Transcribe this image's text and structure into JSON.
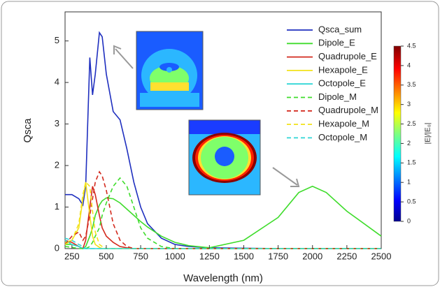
{
  "chart_data": {
    "type": "line",
    "x_label": "Wavelength (nm)",
    "y_label": "Qsca",
    "xlim": [
      200,
      2500
    ],
    "xticks": [
      250,
      500,
      750,
      1000,
      1250,
      1500,
      1750,
      2000,
      2250,
      2500
    ],
    "ylim": [
      0,
      5.7
    ],
    "yticks": [
      0,
      1,
      2,
      3,
      4,
      5
    ],
    "legend": "top-right",
    "x": [
      200,
      250,
      300,
      330,
      350,
      380,
      400,
      420,
      450,
      470,
      500,
      550,
      600,
      650,
      700,
      750,
      800,
      900,
      1000,
      1100,
      1250,
      1500,
      1750,
      1900,
      2000,
      2100,
      2250,
      2500
    ],
    "series": [
      {
        "name": "Qsca_sum",
        "color": "#1f2fbf",
        "dash": false,
        "values": [
          1.3,
          1.3,
          1.2,
          1.05,
          1.5,
          4.6,
          3.7,
          4.2,
          5.2,
          5.1,
          4.2,
          3.3,
          3.1,
          2.4,
          1.6,
          1.0,
          0.6,
          0.25,
          0.1,
          0.05,
          0.02,
          0.01,
          0,
          0,
          0,
          0,
          0,
          0
        ]
      },
      {
        "name": "Dipole_E",
        "color": "#3fdc2c",
        "dash": false,
        "values": [
          0.1,
          0.1,
          0.05,
          0,
          0.05,
          0.3,
          0.5,
          0.8,
          1.05,
          1.15,
          1.22,
          1.2,
          1.1,
          0.95,
          0.8,
          0.65,
          0.52,
          0.3,
          0.15,
          0.07,
          0.02,
          0.2,
          0.75,
          1.35,
          1.5,
          1.35,
          0.9,
          0.3
        ]
      },
      {
        "name": "Quadrupole_E",
        "color": "#d32a1e",
        "dash": false,
        "values": [
          0.2,
          0.15,
          0.05,
          0,
          0.2,
          1.0,
          1.5,
          1.3,
          0.8,
          0.5,
          0.3,
          0.15,
          0.05,
          0.02,
          0,
          0,
          0,
          0,
          0,
          0,
          0,
          0,
          0,
          0,
          0,
          0,
          0,
          0
        ]
      },
      {
        "name": "Hexapole_E",
        "color": "#f2e21a",
        "dash": false,
        "values": [
          0.15,
          0.2,
          0.5,
          1.2,
          1.6,
          0.8,
          0.3,
          0.1,
          0.03,
          0,
          0,
          0,
          0,
          0,
          0,
          0,
          0,
          0,
          0,
          0,
          0,
          0,
          0,
          0,
          0,
          0,
          0,
          0
        ]
      },
      {
        "name": "Octopole_E",
        "color": "#2fd6d6",
        "dash": false,
        "values": [
          0.2,
          0.1,
          0.05,
          0,
          0,
          0,
          0,
          0,
          0,
          0,
          0,
          0,
          0,
          0,
          0,
          0,
          0,
          0,
          0,
          0,
          0,
          0,
          0,
          0,
          0,
          0,
          0,
          0
        ]
      },
      {
        "name": "Dipole_M",
        "color": "#3fdc2c",
        "dash": true,
        "values": [
          0.05,
          0.03,
          0,
          0,
          0,
          0.05,
          0.15,
          0.3,
          0.5,
          0.8,
          1.1,
          1.5,
          1.7,
          1.5,
          1.0,
          0.5,
          0.25,
          0.05,
          0,
          0,
          0,
          0,
          0,
          0,
          0,
          0,
          0,
          0
        ]
      },
      {
        "name": "Quadrupole_M",
        "color": "#d32a1e",
        "dash": true,
        "values": [
          0.1,
          0.3,
          0.4,
          0.2,
          0.3,
          0.8,
          1.2,
          1.6,
          1.85,
          1.75,
          1.4,
          0.6,
          0.2,
          0.05,
          0,
          0,
          0,
          0,
          0,
          0,
          0,
          0,
          0,
          0,
          0,
          0,
          0,
          0
        ]
      },
      {
        "name": "Hexapole_M",
        "color": "#f2e21a",
        "dash": true,
        "values": [
          0.1,
          0.2,
          0.6,
          1.3,
          1.6,
          1.5,
          0.9,
          0.4,
          0.1,
          0.05,
          0,
          0,
          0,
          0,
          0,
          0,
          0,
          0,
          0,
          0,
          0,
          0,
          0,
          0,
          0,
          0,
          0,
          0
        ]
      },
      {
        "name": "Octopole_M",
        "color": "#2fd6d6",
        "dash": true,
        "values": [
          0.25,
          0.2,
          0.1,
          0.05,
          0,
          0,
          0,
          0,
          0,
          0,
          0,
          0,
          0,
          0,
          0,
          0,
          0,
          0,
          0,
          0,
          0,
          0,
          0,
          0,
          0,
          0,
          0,
          0
        ]
      }
    ],
    "colorbar": {
      "label": "|E|/|E₀|",
      "ticks": [
        0,
        0.5,
        1,
        1.5,
        2,
        2.5,
        3,
        3.5,
        4,
        4.5
      ]
    }
  }
}
